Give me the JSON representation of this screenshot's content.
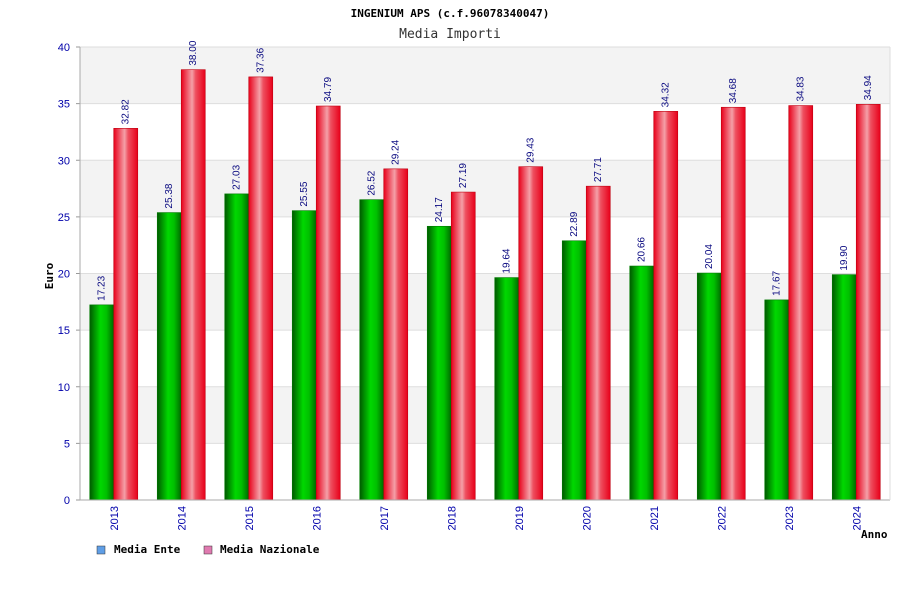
{
  "chart_data": {
    "type": "bar",
    "title": "INGENIUM APS (c.f.96078340047)",
    "subtitle": "Media Importi",
    "ylabel": "Euro",
    "xlabel": "Anno",
    "ylim": [
      0,
      40
    ],
    "yticks": [
      "0",
      "5",
      "10",
      "15",
      "20",
      "25",
      "30",
      "35",
      "40"
    ],
    "categories": [
      "2013",
      "2014",
      "2015",
      "2016",
      "2017",
      "2018",
      "2019",
      "2020",
      "2021",
      "2022",
      "2023",
      "2024"
    ],
    "series": [
      {
        "name": "Media Ente",
        "values": [
          17.23,
          25.38,
          27.03,
          25.55,
          26.52,
          24.17,
          19.64,
          22.89,
          20.66,
          20.04,
          17.67,
          19.9
        ],
        "labels": [
          "17.23",
          "25.38",
          "27.03",
          "25.55",
          "26.52",
          "24.17",
          "19.64",
          "22.89",
          "20.66",
          "20.04",
          "17.67",
          "19.90"
        ],
        "color": "#00b000",
        "legend_color": "#5f9ee6"
      },
      {
        "name": "Media Nazionale",
        "values": [
          32.82,
          38.0,
          37.36,
          34.79,
          29.24,
          27.19,
          29.43,
          27.71,
          34.32,
          34.68,
          34.83,
          34.94
        ],
        "labels": [
          "32.82",
          "38.00",
          "37.36",
          "34.79",
          "29.24",
          "27.19",
          "29.43",
          "27.71",
          "34.32",
          "34.68",
          "34.83",
          "34.94"
        ],
        "color": "#ee1122",
        "legend_color": "#e07ab0"
      }
    ],
    "grid": true,
    "legend_position": "bottom-left"
  }
}
